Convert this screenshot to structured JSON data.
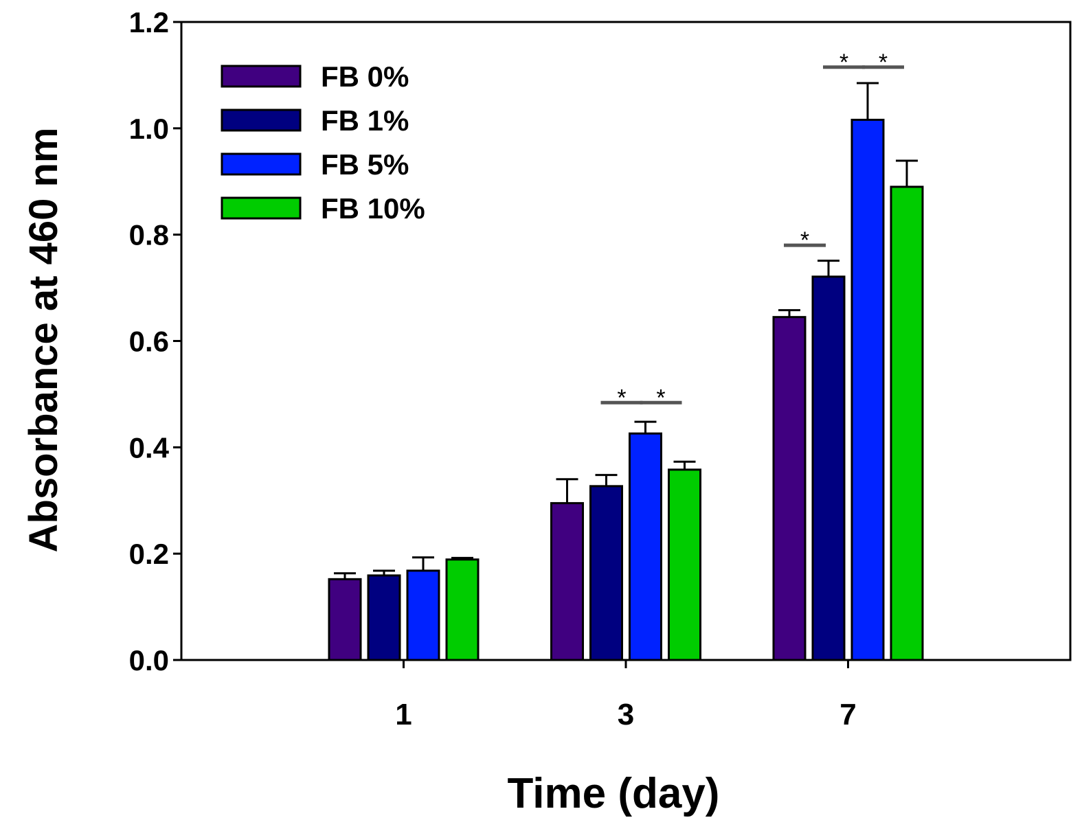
{
  "chart_data": {
    "type": "bar",
    "title": "",
    "xlabel": "Time (day)",
    "ylabel": "Absorbance at 460 nm",
    "categories": [
      "1",
      "3",
      "7"
    ],
    "ylim": [
      0,
      1.2
    ],
    "yticks": [
      "0.0",
      "0.2",
      "0.4",
      "0.6",
      "0.8",
      "1.0",
      "1.2"
    ],
    "grid": false,
    "legend_position": "top-left",
    "series": [
      {
        "name": "FB 0%",
        "color": "#400080",
        "values": [
          0.152,
          0.295,
          0.645
        ],
        "errors": [
          0.011,
          0.045,
          0.013
        ]
      },
      {
        "name": "FB 1%",
        "color": "#000080",
        "values": [
          0.159,
          0.327,
          0.721
        ],
        "errors": [
          0.009,
          0.021,
          0.03
        ]
      },
      {
        "name": "FB 5%",
        "color": "#0022ff",
        "values": [
          0.168,
          0.426,
          1.016
        ],
        "errors": [
          0.025,
          0.022,
          0.069
        ]
      },
      {
        "name": "FB 10%",
        "color": "#00cc00",
        "values": [
          0.189,
          0.358,
          0.89
        ],
        "errors": [
          0.003,
          0.015,
          0.049
        ]
      }
    ],
    "significance": [
      {
        "category": "3",
        "from": "FB 1%",
        "to": "FB 5%",
        "y": 0.484,
        "label": "*"
      },
      {
        "category": "3",
        "from": "FB 5%",
        "to": "FB 10%",
        "y": 0.484,
        "label": "*"
      },
      {
        "category": "7",
        "from": "FB 0%",
        "to": "FB 1%",
        "y": 0.78,
        "label": "*"
      },
      {
        "category": "7",
        "from": "FB 1%",
        "to": "FB 5%",
        "y": 1.115,
        "label": "*"
      },
      {
        "category": "7",
        "from": "FB 5%",
        "to": "FB 10%",
        "y": 1.115,
        "label": "*"
      }
    ]
  }
}
